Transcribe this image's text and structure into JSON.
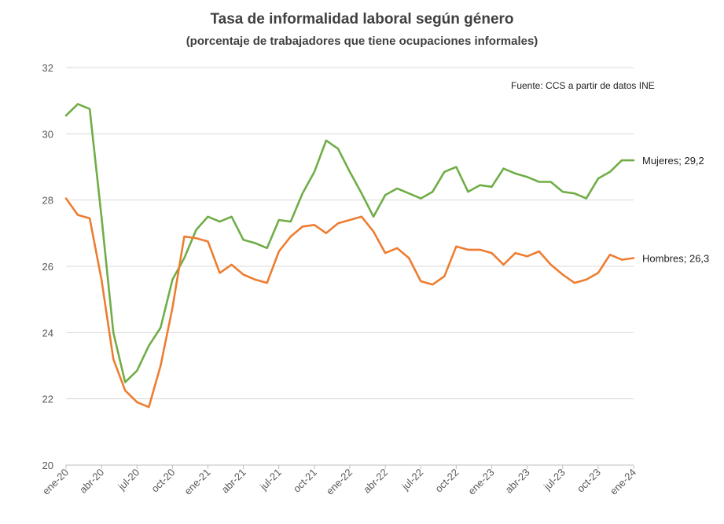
{
  "chart_data": {
    "type": "line",
    "title": "Tasa de informalidad laboral según género",
    "subtitle": "(porcentaje de trabajadores que tiene ocupaciones informales)",
    "source": "Fuente: CCS a partir de datos INE",
    "xlabel": "",
    "ylabel": "",
    "ylim": [
      20,
      32
    ],
    "yticks": [
      "20",
      "22",
      "24",
      "26",
      "28",
      "30",
      "32"
    ],
    "grid": true,
    "x": [
      "ene-20",
      "feb-20",
      "mar-20",
      "abr-20",
      "may-20",
      "jun-20",
      "jul-20",
      "ago-20",
      "sep-20",
      "oct-20",
      "nov-20",
      "dic-20",
      "ene-21",
      "feb-21",
      "mar-21",
      "abr-21",
      "may-21",
      "jun-21",
      "jul-21",
      "ago-21",
      "sep-21",
      "oct-21",
      "nov-21",
      "dic-21",
      "ene-22",
      "feb-22",
      "mar-22",
      "abr-22",
      "may-22",
      "jun-22",
      "jul-22",
      "ago-22",
      "sep-22",
      "oct-22",
      "nov-22",
      "dic-22",
      "ene-23",
      "feb-23",
      "mar-23",
      "abr-23",
      "may-23",
      "jun-23",
      "jul-23",
      "ago-23",
      "sep-23",
      "oct-23",
      "nov-23",
      "dic-23",
      "ene-24"
    ],
    "xticks": [
      "ene-20",
      "abr-20",
      "jul-20",
      "oct-20",
      "ene-21",
      "abr-21",
      "jul-21",
      "oct-21",
      "ene-22",
      "abr-22",
      "jul-22",
      "oct-22",
      "ene-23",
      "abr-23",
      "jul-23",
      "oct-23",
      "ene-24"
    ],
    "series": [
      {
        "name": "Mujeres",
        "color": "#70ad47",
        "end_label": "Mujeres; 29,2",
        "values": [
          30.55,
          30.9,
          30.75,
          27.5,
          24.0,
          22.5,
          22.85,
          23.6,
          24.15,
          25.6,
          26.25,
          27.1,
          27.5,
          27.35,
          27.5,
          26.8,
          26.7,
          26.55,
          27.4,
          27.35,
          28.2,
          28.85,
          29.8,
          29.55,
          28.85,
          28.2,
          27.5,
          28.15,
          28.35,
          28.2,
          28.05,
          28.25,
          28.85,
          29.0,
          28.25,
          28.45,
          28.4,
          28.95,
          28.8,
          28.7,
          28.55,
          28.55,
          28.25,
          28.2,
          28.05,
          28.65,
          28.85,
          29.2,
          29.2
        ]
      },
      {
        "name": "Hombres",
        "color": "#ed7d31",
        "end_label": "Hombres; 26,3",
        "values": [
          28.05,
          27.55,
          27.45,
          25.6,
          23.2,
          22.25,
          21.9,
          21.75,
          23.0,
          24.75,
          26.9,
          26.85,
          26.75,
          25.8,
          26.05,
          25.75,
          25.6,
          25.5,
          26.45,
          26.9,
          27.2,
          27.25,
          27.0,
          27.3,
          27.4,
          27.5,
          27.05,
          26.4,
          26.55,
          26.25,
          25.55,
          25.45,
          25.7,
          26.6,
          26.5,
          26.5,
          26.4,
          26.05,
          26.4,
          26.3,
          26.45,
          26.05,
          25.75,
          25.5,
          25.6,
          25.8,
          26.35,
          26.2,
          26.25
        ]
      }
    ]
  }
}
